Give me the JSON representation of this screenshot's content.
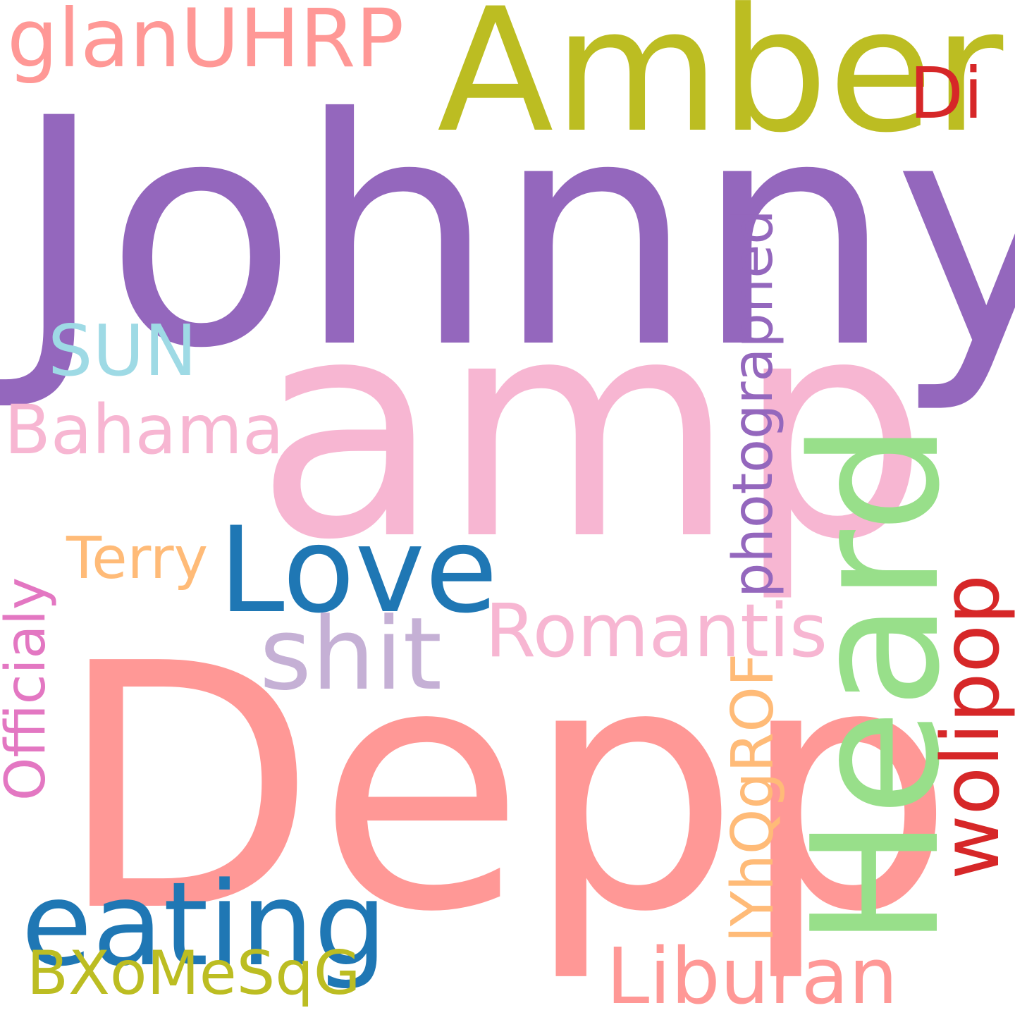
{
  "words": {
    "johnny": {
      "text": "Johnny",
      "color": "#9467bd"
    },
    "amp": {
      "text": "amp",
      "color": "#f7b6d2"
    },
    "depp": {
      "text": "Depp",
      "color": "#ff9896"
    },
    "amber": {
      "text": "Amber",
      "color": "#bcbd22"
    },
    "heard": {
      "text": "Heard",
      "color": "#98df8a"
    },
    "glanuhrp": {
      "text": "glanUHRP",
      "color": "#ff9896"
    },
    "di": {
      "text": "Di",
      "color": "#d62728"
    },
    "sun": {
      "text": "SUN",
      "color": "#9edae5"
    },
    "bahama": {
      "text": "Bahama",
      "color": "#f7b6d2"
    },
    "photographed": {
      "text": "photographed",
      "color": "#9467bd"
    },
    "love": {
      "text": "Love",
      "color": "#1f77b4"
    },
    "terry": {
      "text": "Terry",
      "color": "#ffbb78"
    },
    "officialy": {
      "text": "Officialy",
      "color": "#e377c2"
    },
    "shit": {
      "text": "shit",
      "color": "#c5b0d5"
    },
    "romantis": {
      "text": "Romantis",
      "color": "#f7b6d2"
    },
    "wolipop": {
      "text": "wolipop",
      "color": "#d62728"
    },
    "lyhqgrof": {
      "text": "lYhQgROF",
      "color": "#ffbb78"
    },
    "eating": {
      "text": "eating",
      "color": "#1f77b4"
    },
    "bxomesqg": {
      "text": "BXoMeSqG",
      "color": "#bcbd22"
    },
    "liburan": {
      "text": "Liburan",
      "color": "#ff9896"
    }
  }
}
